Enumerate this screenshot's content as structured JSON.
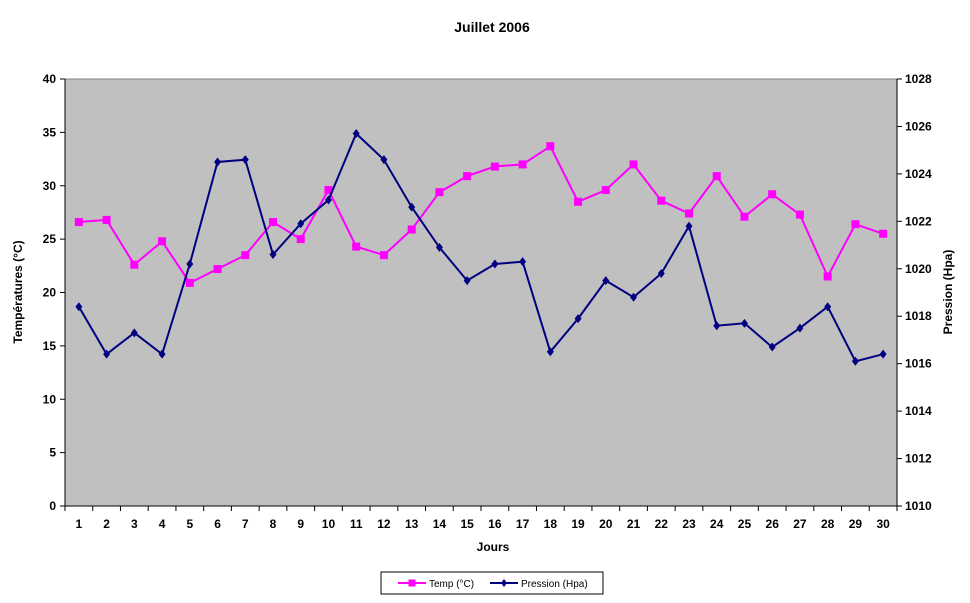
{
  "chart_data": {
    "type": "line",
    "title": "Juillet 2006",
    "xlabel": "Jours",
    "ylabel_left": "Températures (°C)",
    "ylabel_right": "Pression (Hpa)",
    "x": [
      "1",
      "2",
      "3",
      "4",
      "5",
      "6",
      "7",
      "8",
      "9",
      "10",
      "11",
      "12",
      "13",
      "14",
      "15",
      "16",
      "17",
      "18",
      "19",
      "20",
      "21",
      "22",
      "23",
      "24",
      "25",
      "26",
      "27",
      "28",
      "29",
      "30"
    ],
    "yleft": {
      "min": 0,
      "max": 40,
      "ticks": [
        "0",
        "5",
        "10",
        "15",
        "20",
        "25",
        "30",
        "35",
        "40"
      ]
    },
    "yright": {
      "min": 1010,
      "max": 1028,
      "ticks": [
        "1010",
        "1012",
        "1014",
        "1016",
        "1018",
        "1020",
        "1022",
        "1024",
        "1026",
        "1028"
      ]
    },
    "grid": false,
    "legend_position": "bottom",
    "plot_background": "#c0c0c0",
    "series": [
      {
        "name": "Temp (°C)",
        "axis": "left",
        "color": "#ff00ff",
        "marker": "square",
        "values": [
          26.6,
          26.8,
          22.6,
          24.8,
          20.9,
          22.2,
          23.5,
          26.6,
          25.0,
          29.6,
          24.3,
          23.5,
          25.9,
          29.4,
          30.9,
          31.8,
          32.0,
          33.7,
          28.5,
          29.6,
          32.0,
          28.6,
          27.4,
          30.9,
          27.1,
          29.2,
          27.3,
          21.5,
          26.4,
          25.5
        ]
      },
      {
        "name": "Pression (Hpa)",
        "axis": "right",
        "color": "#000080",
        "marker": "diamond",
        "values": [
          1018.4,
          1016.4,
          1017.3,
          1016.4,
          1020.2,
          1024.5,
          1024.6,
          1020.6,
          1021.9,
          1022.9,
          1025.7,
          1024.6,
          1022.6,
          1020.9,
          1019.5,
          1020.2,
          1020.3,
          1016.5,
          1017.9,
          1019.5,
          1018.8,
          1019.8,
          1021.8,
          1017.6,
          1017.7,
          1016.7,
          1017.5,
          1018.4,
          1016.1,
          1016.4
        ]
      }
    ]
  }
}
